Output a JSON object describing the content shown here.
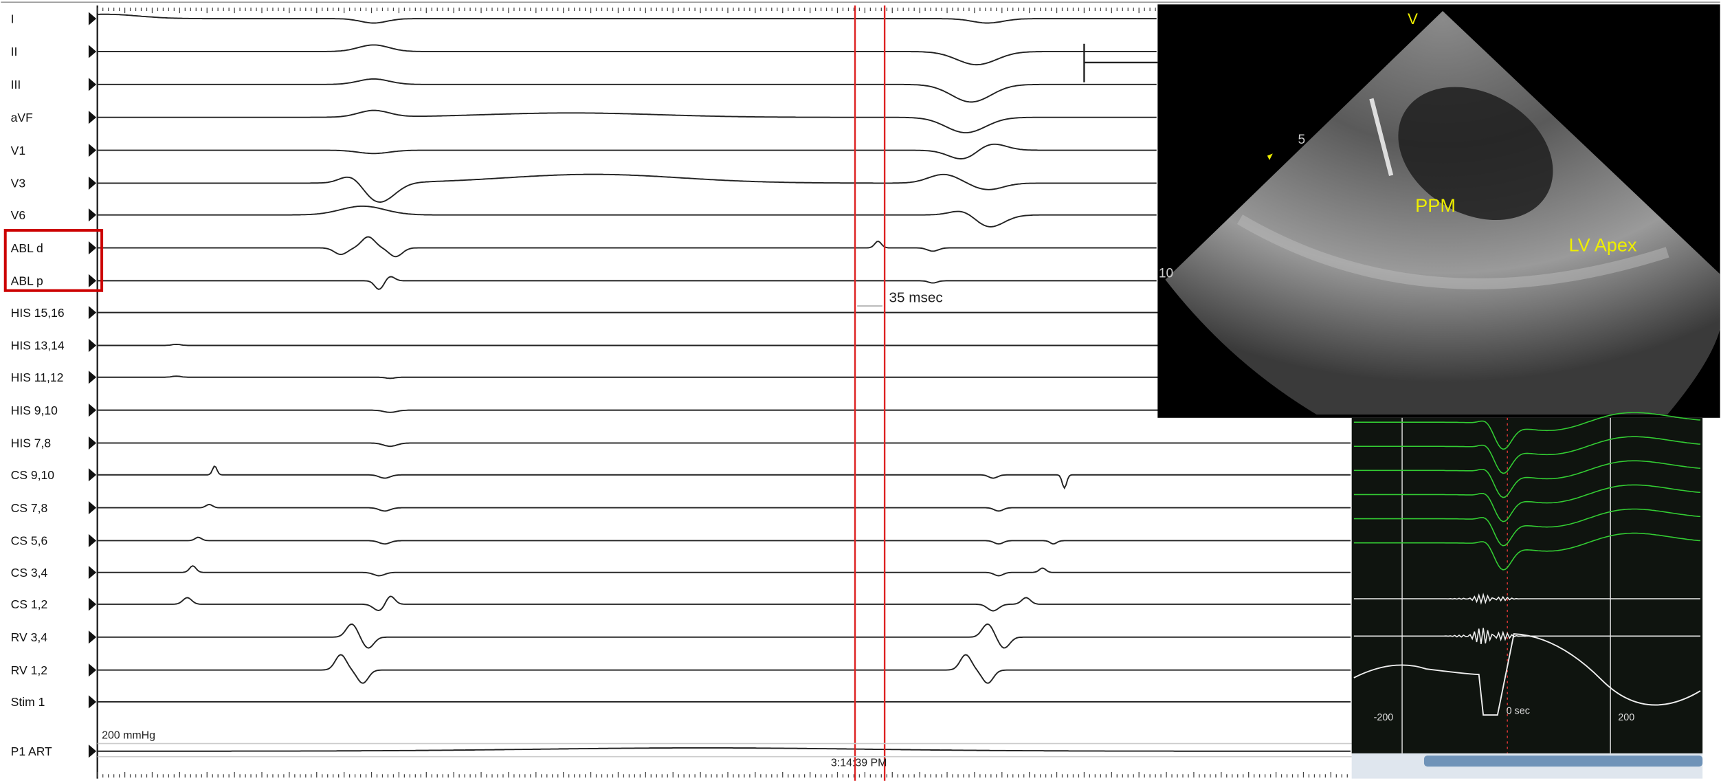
{
  "channels": [
    "I",
    "II",
    "III",
    "aVF",
    "V1",
    "V3",
    "V6",
    "ABL d",
    "ABL p",
    "HIS 15,16",
    "HIS 13,14",
    "HIS 11,12",
    "HIS 9,10",
    "HIS 7,8",
    "CS 9,10",
    "CS 7,8",
    "CS 5,6",
    "CS 3,4",
    "CS 1,2",
    "RV 3,4",
    "RV 1,2",
    "Stim 1",
    "P1 ART"
  ],
  "annotations": {
    "interval": "35 msec",
    "pressure_scale": "200 mmHg",
    "timestamp": "3:14:39 PM"
  },
  "echo": {
    "labels": [
      "V",
      "PPM",
      "LV Apex"
    ],
    "depth_marks": [
      "5",
      "10"
    ]
  },
  "mini_panel": {
    "axis_labels": [
      "-200",
      "0 sec",
      "200"
    ]
  }
}
